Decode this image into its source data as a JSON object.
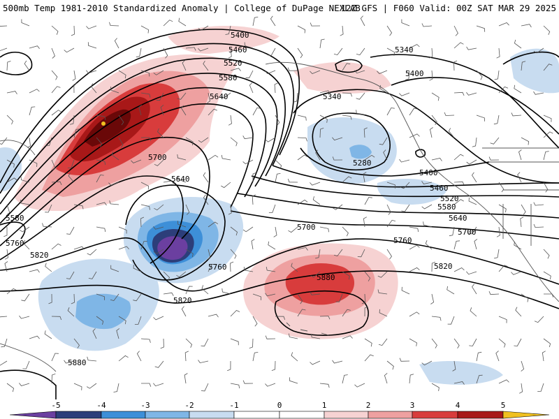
{
  "header": {
    "title": "500mb Temp 1981-2010 Standardized Anomaly | College of DuPage NEXLAB",
    "run": "12Z GFS | F060 Valid: 00Z SAT MAR 29 2025"
  },
  "map": {
    "field": "500mb temperature standardized anomaly",
    "contour_labels": [
      "5400",
      "5460",
      "5520",
      "5580",
      "5640",
      "5700",
      "5340",
      "5400",
      "5340",
      "5280",
      "5400",
      "5460",
      "5520",
      "5580",
      "5640",
      "5700",
      "5640",
      "5700",
      "5760",
      "5820",
      "5760",
      "5880",
      "5820",
      "5580",
      "5760",
      "5820",
      "5880"
    ],
    "colors": {
      "m5": "#6b3fa0",
      "m4": "#2c3e7a",
      "m3": "#3d8fd8",
      "m2": "#7fb6e6",
      "m1": "#c8dcf0",
      "p1": "#f6d2d2",
      "p2": "#eea0a0",
      "p3": "#d83c3c",
      "p4": "#a81818",
      "p5": "#6a0808",
      "extreme": "#f0c020"
    }
  },
  "colorbar": {
    "labels": [
      "-5",
      "-4",
      "-3",
      "-2",
      "-1",
      "0",
      "1",
      "2",
      "3",
      "4",
      "5"
    ]
  }
}
